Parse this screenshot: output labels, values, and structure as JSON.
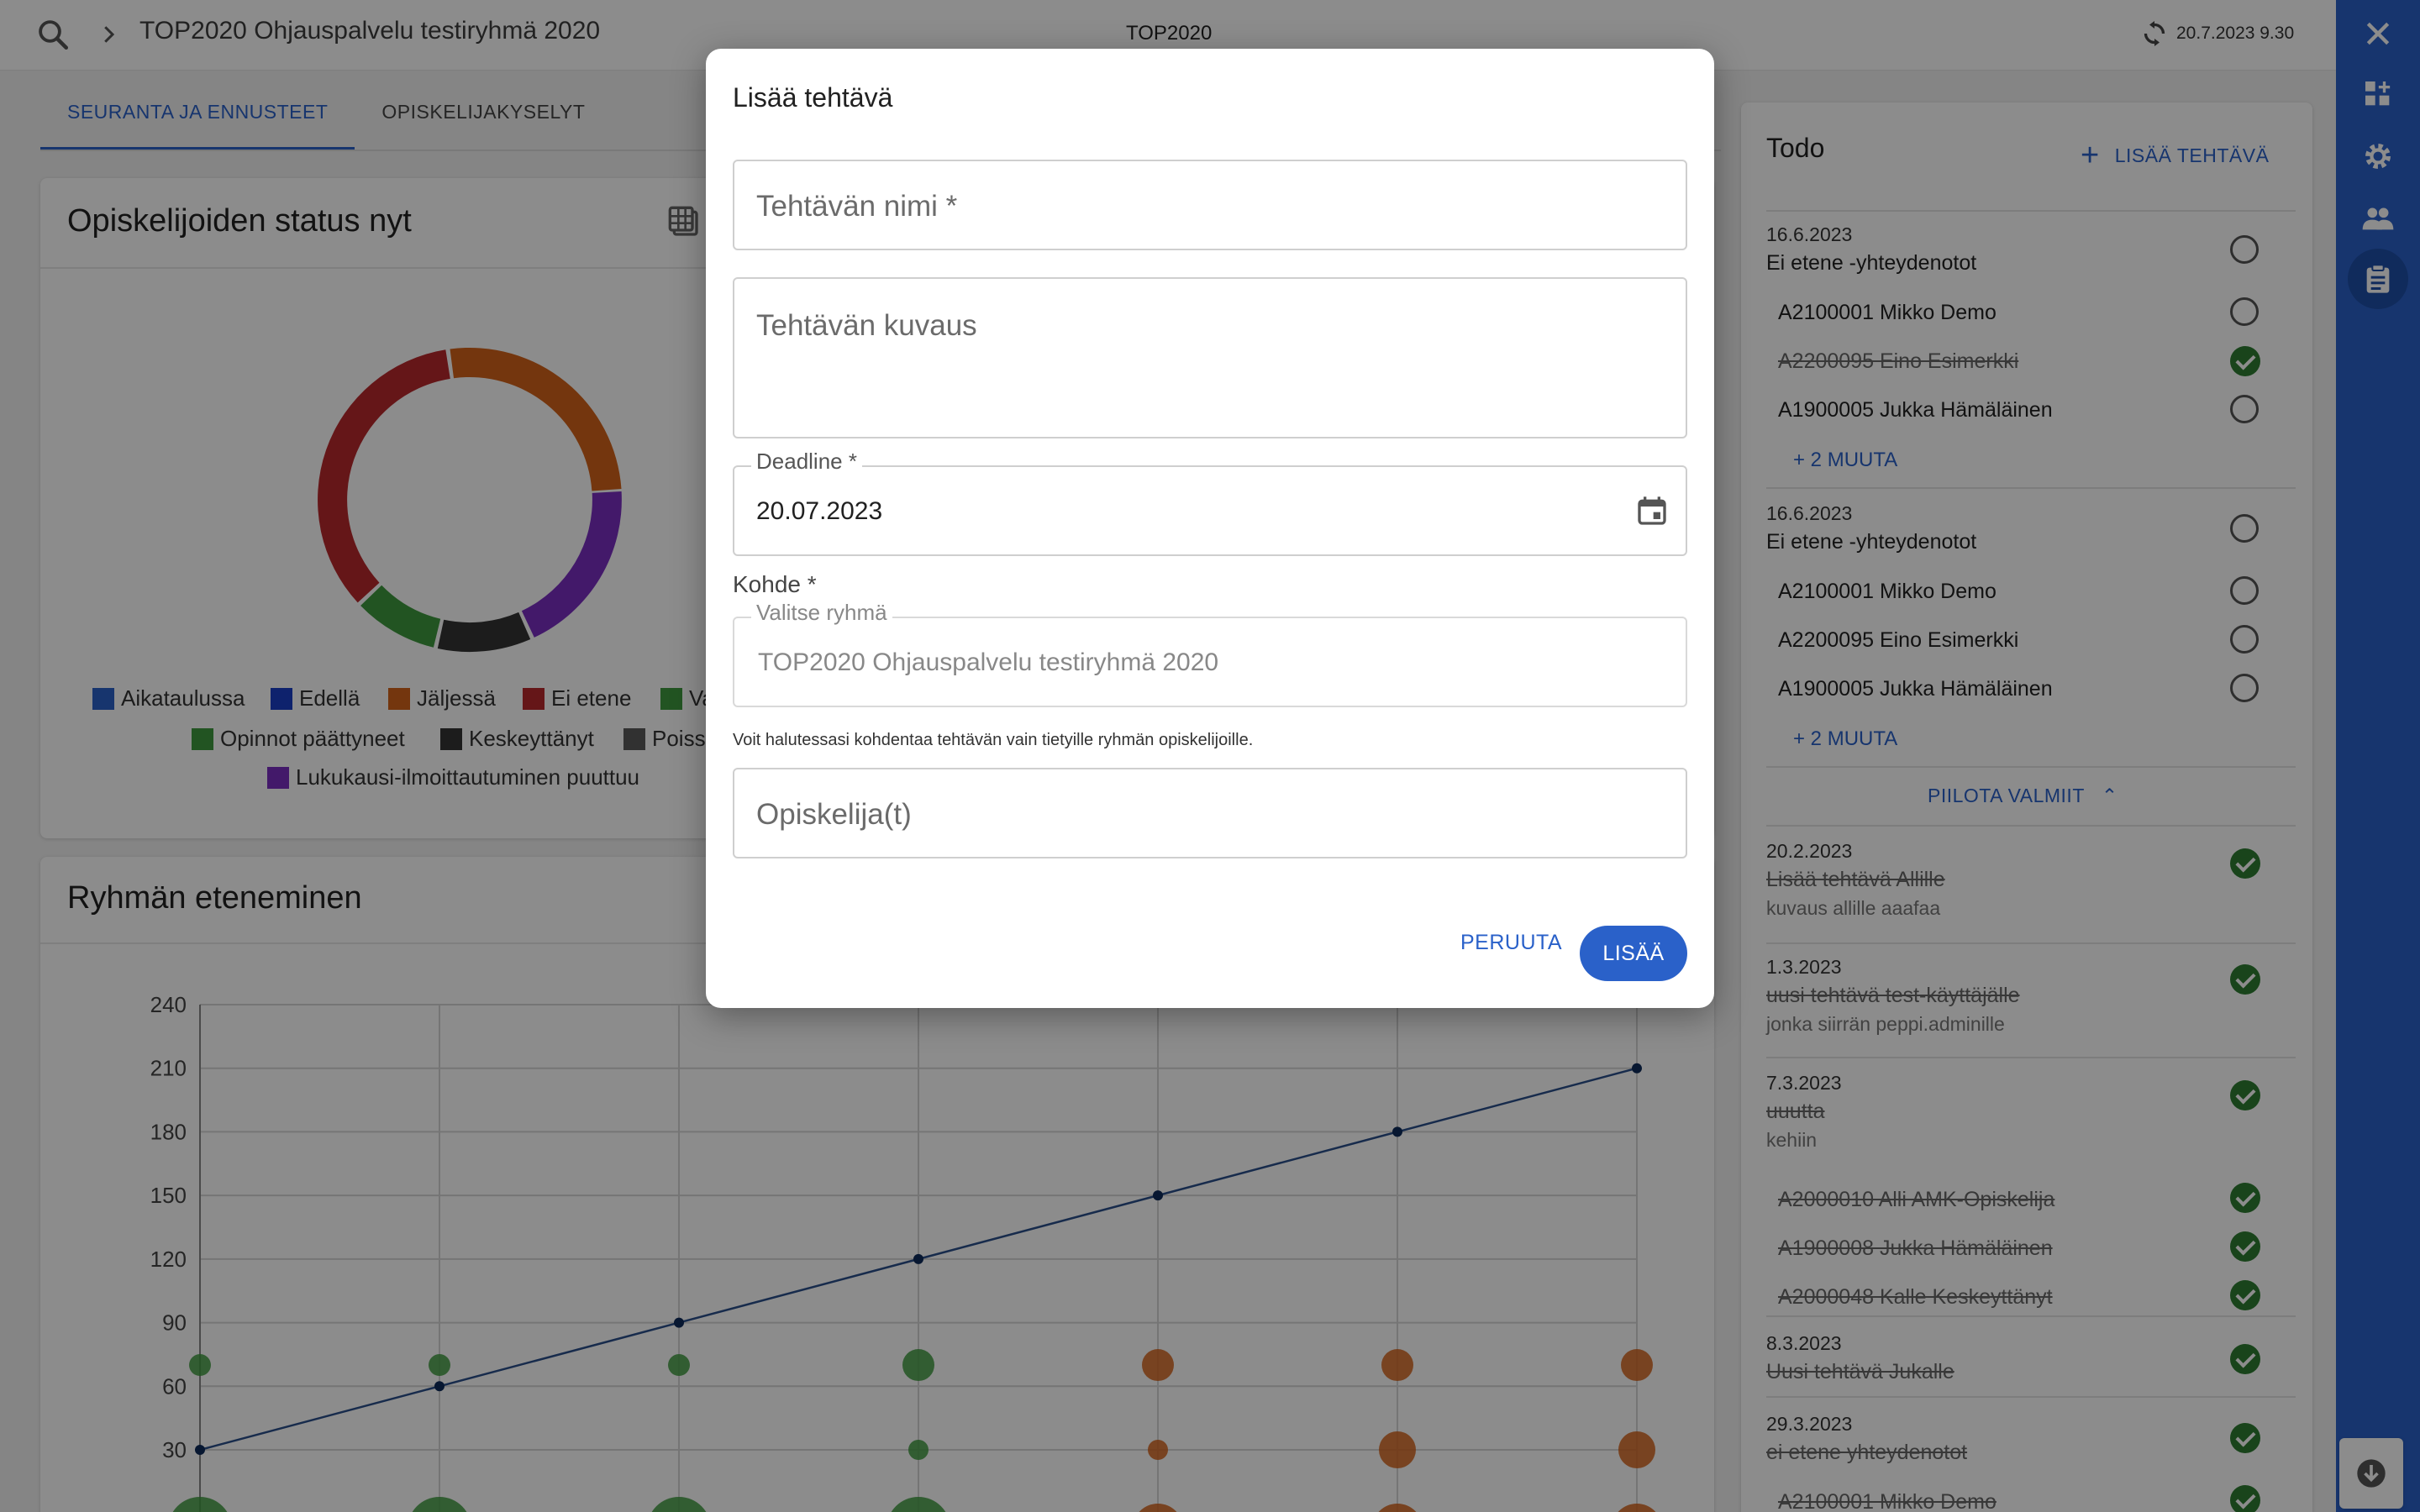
{
  "topbar": {
    "breadcrumb": "TOP2020 Ohjauspalvelu testiryhmä 2020",
    "center_title": "TOP2020",
    "timestamp": "20.7.2023 9.30"
  },
  "tabs": [
    {
      "label": "SEURANTA JA ENNUSTEET",
      "active": true
    },
    {
      "label": "OPISKELIJAKYSELYT",
      "active": false
    }
  ],
  "status_card": {
    "title": "Opiskelijoiden status nyt",
    "legend": [
      {
        "label": "Aikataulussa",
        "color": "#2a61c9"
      },
      {
        "label": "Edellä",
        "color": "#1a3fc7"
      },
      {
        "label": "Jäljessä",
        "color": "#d4631b"
      },
      {
        "label": "Ei etene",
        "color": "#b8282c"
      },
      {
        "label": "Va",
        "color": "#3f9a3f"
      },
      {
        "label": "Opinnot päättyneet",
        "color": "#3f9a3f"
      },
      {
        "label": "Keskeyttänyt",
        "color": "#333333"
      },
      {
        "label": "Poissa",
        "color": "#5a5a5a"
      },
      {
        "label": "Lukukausi-ilmoittautuminen puuttuu",
        "color": "#7b2fc2"
      }
    ]
  },
  "chart_data": {
    "type": "line",
    "title": "Ryhmän eteneminen",
    "ylim": [
      0,
      240
    ],
    "y_ticks": [
      30,
      60,
      90,
      120,
      150,
      180,
      210,
      240
    ],
    "grid": true,
    "series": [
      {
        "values": [
          30,
          60,
          90,
          120,
          150,
          180,
          210
        ]
      }
    ],
    "bubbles_green": [
      70,
      70,
      70,
      70
    ],
    "bubbles_green_low": [
      30
    ],
    "bubbles_orange": [
      70,
      70,
      70
    ],
    "bubbles_orange_low": [
      30,
      30,
      30
    ]
  },
  "todo": {
    "title": "Todo",
    "add_label": "LISÄÄ TEHTÄVÄ",
    "groups": [
      {
        "date": "16.6.2023",
        "title": "Ei etene -yhteydenotot",
        "students": [
          "A2100001 Mikko Demo",
          "A2200095 Eino Esimerkki",
          "A1900005 Jukka Hämäläinen"
        ],
        "more": "+ 2 MUUTA"
      },
      {
        "date": "16.6.2023",
        "title": "Ei etene -yhteydenotot",
        "students": [
          "A2100001 Mikko Demo",
          "A2200095 Eino Esimerkki",
          "A1900005 Jukka Hämäläinen"
        ],
        "more": "+ 2 MUUTA"
      }
    ],
    "hide_done_label": "PIILOTA VALMIIT",
    "done": [
      {
        "date": "20.2.2023",
        "title": "Lisää tehtävä Allille",
        "desc": "kuvaus allille aaafaa"
      },
      {
        "date": "1.3.2023",
        "title": "uusi tehtävä test-käyttäjälle",
        "desc": "jonka siirrän peppi.adminille"
      },
      {
        "date": "7.3.2023",
        "title": "uuutta",
        "desc": "kehiin",
        "students": [
          "A2000010 Alli AMK-Opiskelija",
          "A1900008 Jukka Hämäläinen",
          "A2000048 Kalle Keskeyttänyt"
        ]
      },
      {
        "date": "8.3.2023",
        "title": "Uusi tehtävä Jukalle"
      },
      {
        "date": "29.3.2023",
        "title": "ei etene yhteydenotot",
        "students": [
          "A2100001 Mikko Demo"
        ]
      }
    ]
  },
  "dialog": {
    "title": "Lisää tehtävä",
    "name_placeholder": "Tehtävän nimi *",
    "desc_placeholder": "Tehtävän kuvaus",
    "deadline_label": "Deadline *",
    "deadline_value": "20.07.2023",
    "kohde_label": "Kohde *",
    "group_label": "Valitse ryhmä",
    "group_value": "TOP2020 Ohjauspalvelu testiryhmä 2020",
    "hint": "Voit halutessasi kohdentaa tehtävän vain tietyille ryhmän opiskelijoille.",
    "student_placeholder": "Opiskelija(t)",
    "cancel_label": "PERUUTA",
    "add_label": "LISÄÄ"
  }
}
